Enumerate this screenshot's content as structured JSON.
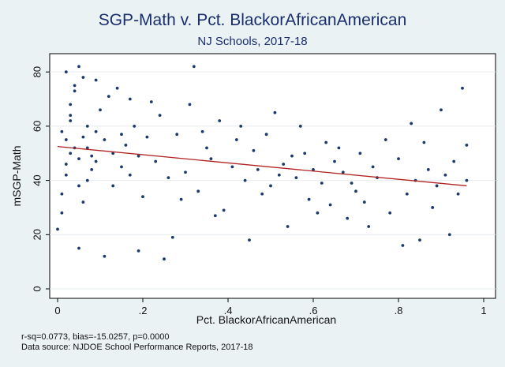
{
  "chart_data": {
    "type": "scatter",
    "title": "SGP-Math v. Pct. BlackorAfricanAmerican",
    "subtitle": "NJ Schools, 2017-18",
    "xlabel": "Pct. BlackorAfricanAmerican",
    "ylabel": "mSGP-Math",
    "xlim": [
      0,
      1
    ],
    "ylim": [
      0,
      85
    ],
    "x_ticks": [
      0,
      0.2,
      0.4,
      0.6,
      0.8,
      1
    ],
    "x_tick_labels": [
      "0",
      ".2",
      ".4",
      ".6",
      ".8",
      "1"
    ],
    "y_ticks": [
      0,
      20,
      40,
      60,
      80
    ],
    "y_tick_labels": [
      "0",
      "20",
      "40",
      "60",
      "80"
    ],
    "grid": true,
    "fit_line": {
      "x": [
        0,
        0.96
      ],
      "y": [
        52.5,
        38.0
      ],
      "color": "#b22222"
    },
    "marker_color": "#1a3a6e",
    "series": [
      {
        "name": "Schools",
        "points": [
          [
            0.0,
            22
          ],
          [
            0.01,
            28
          ],
          [
            0.01,
            35
          ],
          [
            0.02,
            46
          ],
          [
            0.02,
            55
          ],
          [
            0.03,
            62
          ],
          [
            0.03,
            68
          ],
          [
            0.04,
            75
          ],
          [
            0.05,
            82
          ],
          [
            0.06,
            32
          ],
          [
            0.07,
            40
          ],
          [
            0.08,
            49
          ],
          [
            0.09,
            58
          ],
          [
            0.1,
            66
          ],
          [
            0.12,
            71
          ],
          [
            0.13,
            38
          ],
          [
            0.15,
            45
          ],
          [
            0.16,
            53
          ],
          [
            0.18,
            60
          ],
          [
            0.2,
            34
          ],
          [
            0.21,
            56
          ],
          [
            0.23,
            47
          ],
          [
            0.24,
            64
          ],
          [
            0.26,
            41
          ],
          [
            0.27,
            19
          ],
          [
            0.28,
            57
          ],
          [
            0.3,
            43
          ],
          [
            0.31,
            68
          ],
          [
            0.32,
            82
          ],
          [
            0.33,
            36
          ],
          [
            0.35,
            52
          ],
          [
            0.36,
            48
          ],
          [
            0.38,
            62
          ],
          [
            0.39,
            29
          ],
          [
            0.41,
            45
          ],
          [
            0.42,
            55
          ],
          [
            0.44,
            40
          ],
          [
            0.45,
            18
          ],
          [
            0.46,
            51
          ],
          [
            0.47,
            44
          ],
          [
            0.49,
            57
          ],
          [
            0.5,
            38
          ],
          [
            0.51,
            65
          ],
          [
            0.53,
            46
          ],
          [
            0.54,
            23
          ],
          [
            0.55,
            49
          ],
          [
            0.56,
            41
          ],
          [
            0.57,
            60
          ],
          [
            0.59,
            33
          ],
          [
            0.6,
            44
          ],
          [
            0.62,
            39
          ],
          [
            0.63,
            54
          ],
          [
            0.64,
            31
          ],
          [
            0.65,
            47
          ],
          [
            0.67,
            43
          ],
          [
            0.68,
            26
          ],
          [
            0.7,
            36
          ],
          [
            0.71,
            50
          ],
          [
            0.72,
            32
          ],
          [
            0.73,
            23
          ],
          [
            0.74,
            45
          ],
          [
            0.75,
            41
          ],
          [
            0.77,
            55
          ],
          [
            0.78,
            28
          ],
          [
            0.8,
            48
          ],
          [
            0.81,
            16
          ],
          [
            0.82,
            35
          ],
          [
            0.83,
            61
          ],
          [
            0.84,
            40
          ],
          [
            0.85,
            18
          ],
          [
            0.86,
            54
          ],
          [
            0.87,
            44
          ],
          [
            0.88,
            30
          ],
          [
            0.89,
            38
          ],
          [
            0.9,
            66
          ],
          [
            0.91,
            42
          ],
          [
            0.92,
            20
          ],
          [
            0.93,
            47
          ],
          [
            0.94,
            35
          ],
          [
            0.95,
            74
          ],
          [
            0.96,
            53
          ],
          [
            0.96,
            40
          ],
          [
            0.05,
            15
          ],
          [
            0.11,
            12
          ],
          [
            0.25,
            11
          ],
          [
            0.19,
            14
          ],
          [
            0.02,
            80
          ],
          [
            0.04,
            73
          ],
          [
            0.06,
            78
          ],
          [
            0.09,
            77
          ],
          [
            0.14,
            74
          ],
          [
            0.17,
            70
          ],
          [
            0.22,
            69
          ],
          [
            0.03,
            50
          ],
          [
            0.04,
            52
          ],
          [
            0.05,
            48
          ],
          [
            0.02,
            42
          ],
          [
            0.06,
            56
          ],
          [
            0.07,
            60
          ],
          [
            0.08,
            44
          ],
          [
            0.01,
            58
          ],
          [
            0.03,
            64
          ],
          [
            0.05,
            38
          ],
          [
            0.07,
            52
          ],
          [
            0.09,
            47
          ],
          [
            0.11,
            55
          ],
          [
            0.13,
            50
          ],
          [
            0.15,
            57
          ],
          [
            0.17,
            42
          ],
          [
            0.19,
            49
          ],
          [
            0.29,
            33
          ],
          [
            0.34,
            58
          ],
          [
            0.37,
            27
          ],
          [
            0.43,
            60
          ],
          [
            0.48,
            35
          ],
          [
            0.52,
            42
          ],
          [
            0.58,
            50
          ],
          [
            0.61,
            28
          ],
          [
            0.66,
            52
          ],
          [
            0.69,
            39
          ]
        ]
      }
    ]
  },
  "footnotes": {
    "stats": "r-sq=0.0773, bias=-15.0257, p=0.0000",
    "source": "Data source: NJDOE School Performance Reports, 2017-18"
  }
}
